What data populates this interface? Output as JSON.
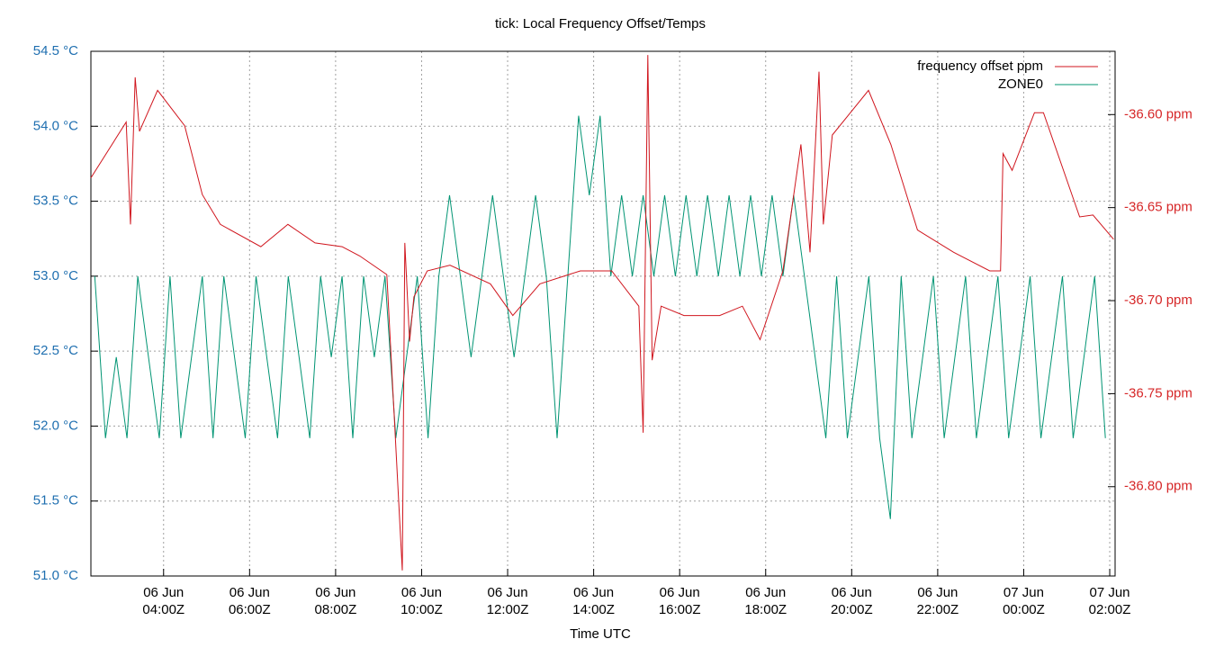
{
  "chart_data": {
    "type": "line",
    "title": "tick: Local Frequency Offset/Temps",
    "x_label": "Time UTC",
    "xlim": [
      2.31,
      26.125
    ],
    "xticks": [
      {
        "value": 4,
        "label": "06 Jun\n04:00Z"
      },
      {
        "value": 6,
        "label": "06 Jun\n06:00Z"
      },
      {
        "value": 8,
        "label": "06 Jun\n08:00Z"
      },
      {
        "value": 10,
        "label": "06 Jun\n10:00Z"
      },
      {
        "value": 12,
        "label": "06 Jun\n12:00Z"
      },
      {
        "value": 14,
        "label": "06 Jun\n14:00Z"
      },
      {
        "value": 16,
        "label": "06 Jun\n16:00Z"
      },
      {
        "value": 18,
        "label": "06 Jun\n18:00Z"
      },
      {
        "value": 20,
        "label": "06 Jun\n20:00Z"
      },
      {
        "value": 22,
        "label": "06 Jun\n22:00Z"
      },
      {
        "value": 24,
        "label": "07 Jun\n00:00Z"
      },
      {
        "value": 26,
        "label": "07 Jun\n02:00Z"
      }
    ],
    "ylim": [
      51.0,
      54.5
    ],
    "yticks": [
      {
        "value": 51.0,
        "label": "51.0 °C"
      },
      {
        "value": 51.5,
        "label": "51.5 °C"
      },
      {
        "value": 52.0,
        "label": "52.0 °C"
      },
      {
        "value": 52.5,
        "label": "52.5 °C"
      },
      {
        "value": 53.0,
        "label": "53.0 °C"
      },
      {
        "value": 53.5,
        "label": "53.5 °C"
      },
      {
        "value": 54.0,
        "label": "54.0 °C"
      },
      {
        "value": 54.5,
        "label": "54.5 °C"
      }
    ],
    "y2lim": [
      -36.848,
      -36.566
    ],
    "y2ticks": [
      {
        "value": -36.6,
        "label": "-36.60 ppm"
      },
      {
        "value": -36.65,
        "label": "-36.65 ppm"
      },
      {
        "value": -36.7,
        "label": "-36.70 ppm"
      },
      {
        "value": -36.75,
        "label": "-36.75 ppm"
      },
      {
        "value": -36.8,
        "label": "-36.80 ppm"
      }
    ],
    "y_tick_color": "#1f6fb0",
    "y2_tick_color": "#d62728",
    "grid": true,
    "legend": "top-right",
    "series": [
      {
        "name": "frequency offset ppm",
        "color": "#d0161e",
        "axis": "y2",
        "x": [
          2.31,
          3.13,
          3.23,
          3.34,
          3.44,
          3.86,
          4.49,
          4.9,
          5.32,
          6.26,
          6.89,
          7.52,
          8.15,
          8.56,
          9.19,
          9.55,
          9.61,
          9.72,
          9.82,
          10.13,
          10.66,
          11.6,
          12.12,
          12.75,
          13.69,
          14.42,
          15.05,
          15.15,
          15.26,
          15.36,
          15.57,
          16.1,
          16.93,
          17.46,
          17.87,
          18.4,
          18.82,
          19.03,
          19.24,
          19.34,
          19.55,
          20.39,
          20.91,
          21.53,
          22.37,
          23.21,
          23.46,
          23.52,
          23.73,
          24.25,
          24.46,
          25.3,
          25.61,
          26.09
        ],
        "values": [
          -36.634,
          -36.604,
          -36.659,
          -36.58,
          -36.609,
          -36.587,
          -36.606,
          -36.643,
          -36.659,
          -36.671,
          -36.659,
          -36.669,
          -36.671,
          -36.676,
          -36.686,
          -36.845,
          -36.669,
          -36.722,
          -36.698,
          -36.684,
          -36.681,
          -36.691,
          -36.708,
          -36.691,
          -36.684,
          -36.684,
          -36.703,
          -36.771,
          -36.568,
          -36.732,
          -36.703,
          -36.708,
          -36.708,
          -36.703,
          -36.721,
          -36.684,
          -36.616,
          -36.674,
          -36.577,
          -36.659,
          -36.611,
          -36.587,
          -36.616,
          -36.662,
          -36.674,
          -36.684,
          -36.684,
          -36.621,
          -36.63,
          -36.599,
          -36.599,
          -36.655,
          -36.654,
          -36.667
        ]
      },
      {
        "name": "ZONE0",
        "color": "#009473",
        "axis": "y",
        "x": [
          2.4,
          2.65,
          2.9,
          3.15,
          3.4,
          3.65,
          3.9,
          4.15,
          4.4,
          4.65,
          4.9,
          5.15,
          5.4,
          5.65,
          5.9,
          6.15,
          6.4,
          6.65,
          6.9,
          7.15,
          7.4,
          7.65,
          7.9,
          8.15,
          8.4,
          8.65,
          8.9,
          9.15,
          9.4,
          9.65,
          9.9,
          10.15,
          10.4,
          10.65,
          10.9,
          11.15,
          11.4,
          11.65,
          11.9,
          12.15,
          12.4,
          12.65,
          12.9,
          13.15,
          13.4,
          13.65,
          13.9,
          14.15,
          14.4,
          14.65,
          14.9,
          15.15,
          15.4,
          15.65,
          15.9,
          16.15,
          16.4,
          16.65,
          16.9,
          17.15,
          17.4,
          17.65,
          17.9,
          18.15,
          18.4,
          18.65,
          18.9,
          19.15,
          19.4,
          19.65,
          19.9,
          20.15,
          20.4,
          20.65,
          20.9,
          21.15,
          21.4,
          21.65,
          21.9,
          22.15,
          22.4,
          22.65,
          22.9,
          23.15,
          23.4,
          23.65,
          23.9,
          24.15,
          24.4,
          24.65,
          24.9,
          25.15,
          25.4,
          25.65,
          25.9
        ],
        "values": [
          53.0,
          51.92,
          52.46,
          51.92,
          53.0,
          52.46,
          51.92,
          53.0,
          51.92,
          52.46,
          53.0,
          51.92,
          53.0,
          52.46,
          51.92,
          53.0,
          52.46,
          51.92,
          53.0,
          52.46,
          51.92,
          53.0,
          52.46,
          53.0,
          51.92,
          53.0,
          52.46,
          53.0,
          51.92,
          52.46,
          53.0,
          51.92,
          53.0,
          53.54,
          53.0,
          52.46,
          53.0,
          53.54,
          53.0,
          52.46,
          53.0,
          53.54,
          53.0,
          51.92,
          53.0,
          54.07,
          53.54,
          54.07,
          53.0,
          53.54,
          53.0,
          53.54,
          53.0,
          53.54,
          53.0,
          53.54,
          53.0,
          53.54,
          53.0,
          53.54,
          53.0,
          53.54,
          53.0,
          53.54,
          53.0,
          53.54,
          53.0,
          52.46,
          51.92,
          53.0,
          51.92,
          52.46,
          53.0,
          51.92,
          51.38,
          53.0,
          51.92,
          52.46,
          53.0,
          51.92,
          52.46,
          53.0,
          51.92,
          52.46,
          53.0,
          51.92,
          52.46,
          53.0,
          51.92,
          52.46,
          53.0,
          51.92,
          52.46,
          53.0,
          51.92
        ]
      }
    ]
  }
}
